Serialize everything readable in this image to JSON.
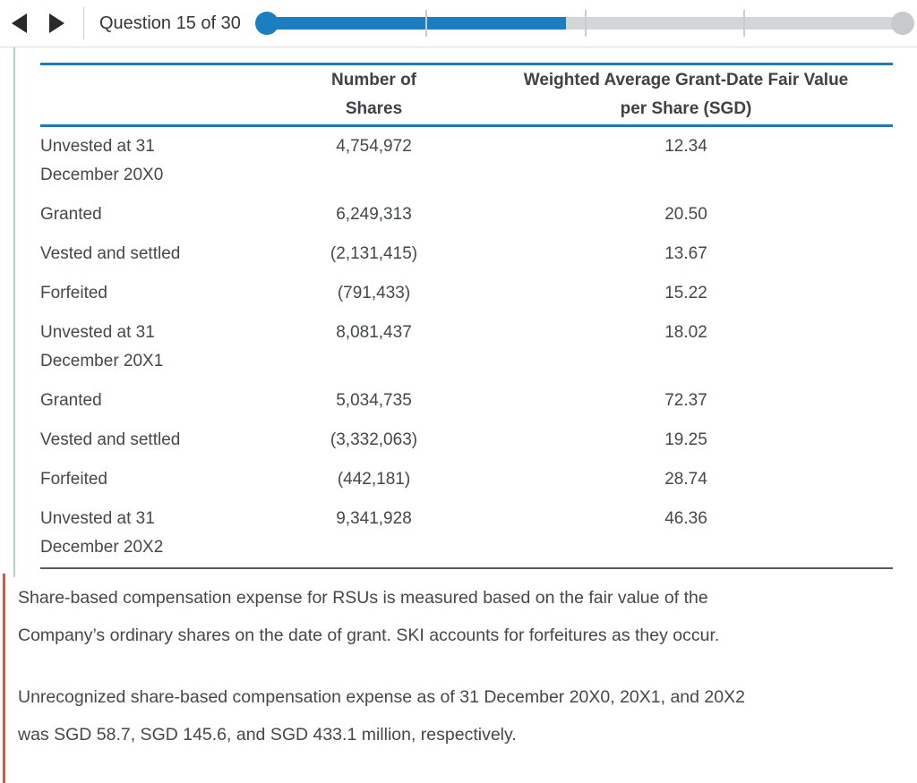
{
  "toolbar": {
    "question_label": "Question 15 of 30",
    "progress": {
      "current_question": 15,
      "total_questions": 30,
      "percent_complete": 47,
      "tick_positions_percent": [
        25,
        50,
        75
      ]
    }
  },
  "colors": {
    "accent_blue": "#1b7ec0",
    "table_rule_blue": "#1e7ab8",
    "table_bottom_rule_gray": "#58595b",
    "progress_track_gray": "#d4d5d6",
    "progress_end_cap_gray": "#c7c9cb",
    "note_border_orange": "#c4604a",
    "side_rule_teal": "#aed3cb",
    "text_dark_gray": "#44474c"
  },
  "table": {
    "col_headers": [
      "",
      "Number of\nShares",
      "Weighted Average Grant-Date Fair Value\nper Share (SGD)"
    ],
    "rows": [
      {
        "label": "Unvested at 31\nDecember 20X0",
        "shares": "4,754,972",
        "fair_value": "12.34"
      },
      {
        "label": "Granted",
        "shares": "6,249,313",
        "fair_value": "20.50"
      },
      {
        "label": "Vested and settled",
        "shares": "(2,131,415)",
        "fair_value": "13.67"
      },
      {
        "label": "Forfeited",
        "shares": "(791,433)",
        "fair_value": "15.22"
      },
      {
        "label": "Unvested at 31\nDecember 20X1",
        "shares": "8,081,437",
        "fair_value": "18.02"
      },
      {
        "label": "Granted",
        "shares": "5,034,735",
        "fair_value": "72.37"
      },
      {
        "label": "Vested and settled",
        "shares": "(3,332,063)",
        "fair_value": "19.25"
      },
      {
        "label": "Forfeited",
        "shares": "(442,181)",
        "fair_value": "28.74"
      },
      {
        "label": "Unvested at 31\nDecember 20X2",
        "shares": "9,341,928",
        "fair_value": "46.36"
      }
    ]
  },
  "paragraphs": [
    "Share-based compensation expense for RSUs is measured based on the fair value of the\nCompany’s ordinary shares on the date of grant. SKI accounts for forfeitures as they occur.",
    "Unrecognized share-based compensation expense as of 31 December 20X0, 20X1, and 20X2\nwas SGD 58.7, SGD 145.6, and SGD 433.1 million, respectively."
  ]
}
